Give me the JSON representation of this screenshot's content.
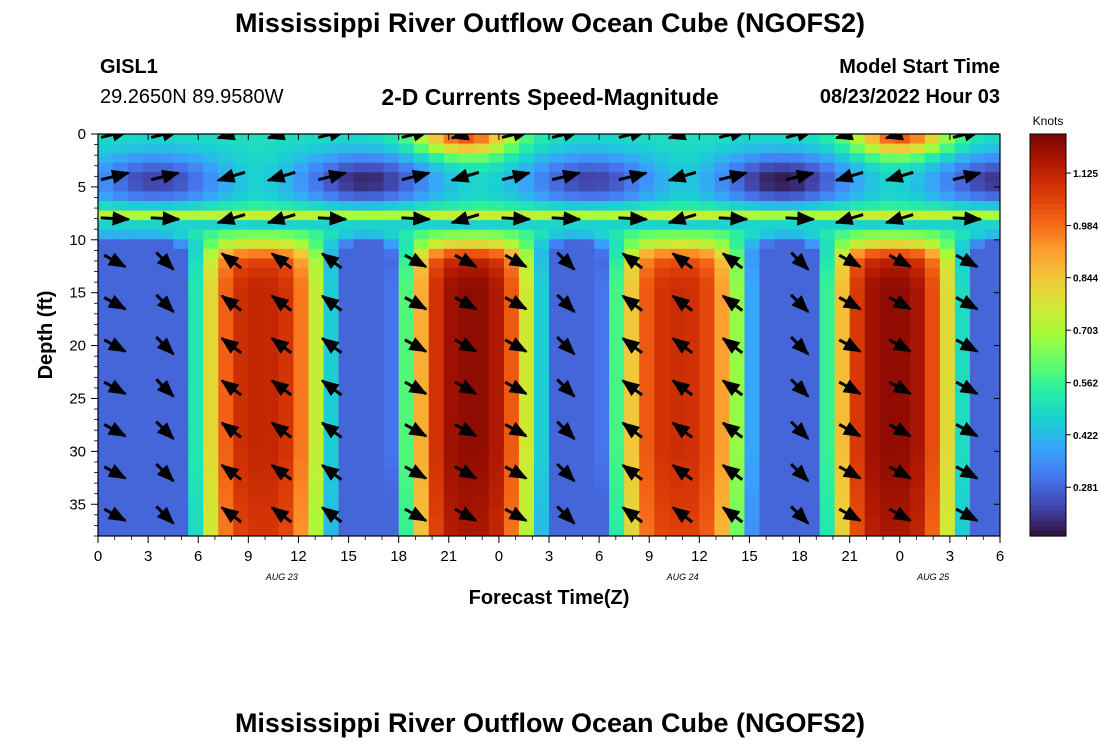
{
  "header": {
    "title": "Mississippi River Outflow Ocean Cube (NGOFS2)",
    "station": "GISL1",
    "coords": "29.2650N  89.9580W",
    "subtitle": "2-D Currents Speed-Magnitude",
    "model_start_label": "Model Start Time",
    "model_start_value": "08/23/2022 Hour 03"
  },
  "footer": {
    "title": "Mississippi River Outflow Ocean Cube (NGOFS2)"
  },
  "chart_data": {
    "type": "heatmap",
    "xlabel": "Forecast Time(Z)",
    "ylabel": "Depth (ft)",
    "x_range_hours": [
      0,
      54
    ],
    "x_ticks": [
      "0",
      "3",
      "6",
      "9",
      "12",
      "15",
      "18",
      "21",
      "0",
      "3",
      "6",
      "9",
      "12",
      "15",
      "18",
      "21",
      "0",
      "3",
      "6"
    ],
    "date_labels": [
      {
        "text": "AUG 23",
        "hour": 11
      },
      {
        "text": "AUG 24",
        "hour": 35
      },
      {
        "text": "AUG 25",
        "hour": 50
      }
    ],
    "y_range_ft": [
      0,
      38
    ],
    "y_ticks": [
      0,
      5,
      10,
      15,
      20,
      25,
      30,
      35
    ],
    "colorbar": {
      "unit": "Knots",
      "range": [
        0.15,
        1.23
      ],
      "ticks": [
        "1.125",
        "0.984",
        "0.844",
        "0.703",
        "0.562",
        "0.422",
        "0.281"
      ],
      "tick_values": [
        1.125,
        0.984,
        0.844,
        0.703,
        0.562,
        0.422,
        0.281
      ]
    },
    "colormap": [
      "#30123b",
      "#4145ab",
      "#4675ed",
      "#39a2fc",
      "#1bcfd4",
      "#24eca6",
      "#61fc6c",
      "#a4fc3b",
      "#d1e834",
      "#f3c63a",
      "#fe9b2d",
      "#f36315",
      "#d93806",
      "#b11901",
      "#7a0402"
    ],
    "speed_peaks": [
      {
        "hour": 9.8,
        "peak": 1.12
      },
      {
        "hour": 22.3,
        "peak": 1.2
      },
      {
        "hour": 34.8,
        "peak": 1.1
      },
      {
        "hour": 47.6,
        "peak": 1.2
      }
    ],
    "surface_peaks": [
      {
        "hour": 22,
        "peak": 0.95
      },
      {
        "hour": 48,
        "peak": 0.95
      }
    ],
    "vector_columns_hours": [
      1,
      4,
      8,
      11,
      14,
      19,
      22,
      25,
      28,
      32,
      35,
      38,
      42,
      45,
      48,
      52
    ],
    "vector_depths_ft": [
      0,
      4,
      8,
      12,
      16,
      20,
      24,
      28,
      32,
      36
    ]
  }
}
